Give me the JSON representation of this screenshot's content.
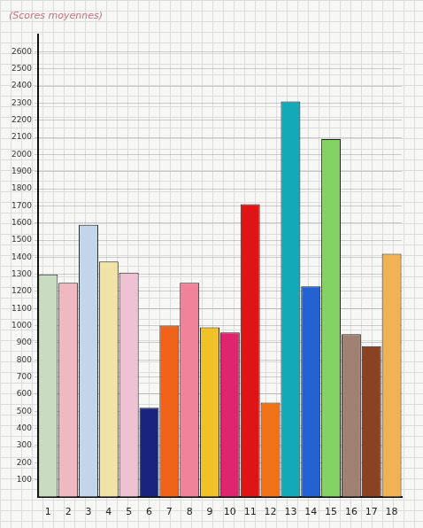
{
  "chart_data": {
    "type": "bar",
    "title": "(Scores moyennes)",
    "categories": [
      "1",
      "2",
      "3",
      "4",
      "5",
      "6",
      "7",
      "8",
      "9",
      "10",
      "11",
      "12",
      "13",
      "14",
      "15",
      "16",
      "17",
      "18"
    ],
    "values": [
      1300,
      1250,
      1590,
      1375,
      1310,
      520,
      1000,
      1250,
      990,
      960,
      1710,
      550,
      2310,
      1230,
      2090,
      950,
      880,
      1420
    ],
    "colors": [
      "#c9dcc2",
      "#f0b9c2",
      "#c2d5ea",
      "#f1e2a8",
      "#eec2d2",
      "#1a237e",
      "#f0621a",
      "#f08299",
      "#f0c228",
      "#e0256f",
      "#e01414",
      "#f07216",
      "#12a9b9",
      "#2262d2",
      "#84d264",
      "#a08272",
      "#8a4222",
      "#f0b252"
    ],
    "ylim": [
      0,
      2700
    ],
    "yticks": [
      100,
      200,
      300,
      400,
      500,
      600,
      700,
      800,
      900,
      1000,
      1100,
      1200,
      1300,
      1400,
      1500,
      1600,
      1700,
      1800,
      1900,
      2000,
      2100,
      2200,
      2300,
      2400,
      2500,
      2600
    ],
    "grid": true
  }
}
